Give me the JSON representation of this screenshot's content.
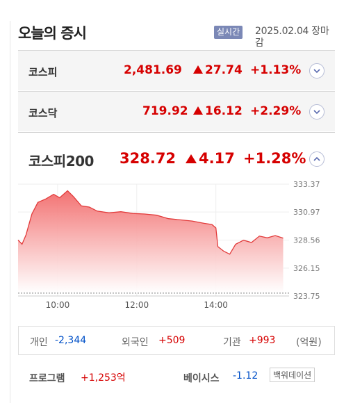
{
  "header": {
    "title": "오늘의 증시",
    "realtime_badge": "실시간",
    "date_status": "2025.02.04 장마감"
  },
  "indices": [
    {
      "name": "코스피",
      "value": "2,481.69",
      "change": "27.74",
      "percent": "+1.13%"
    },
    {
      "name": "코스닥",
      "value": "719.92",
      "change": "16.12",
      "percent": "+2.29%"
    }
  ],
  "kospi200": {
    "name": "코스피200",
    "value": "328.72",
    "change": "4.17",
    "percent": "+1.28%"
  },
  "chart_data": {
    "type": "area",
    "y_ticks": [
      "333.37",
      "330.97",
      "328.56",
      "326.15",
      "323.75"
    ],
    "x_ticks": [
      "10:00",
      "12:00",
      "14:00"
    ],
    "ylim": [
      323.75,
      333.37
    ],
    "baseline": 324.0,
    "series": [
      {
        "values": [
          [
            9.0,
            328.56
          ],
          [
            9.1,
            328.2
          ],
          [
            9.2,
            329.0
          ],
          [
            9.35,
            330.8
          ],
          [
            9.5,
            331.8
          ],
          [
            9.7,
            332.1
          ],
          [
            9.9,
            332.5
          ],
          [
            10.05,
            332.2
          ],
          [
            10.25,
            332.8
          ],
          [
            10.4,
            332.3
          ],
          [
            10.6,
            331.5
          ],
          [
            10.8,
            331.4
          ],
          [
            11.0,
            331.05
          ],
          [
            11.3,
            330.9
          ],
          [
            11.6,
            331.0
          ],
          [
            11.9,
            330.85
          ],
          [
            12.2,
            330.8
          ],
          [
            12.5,
            330.7
          ],
          [
            12.8,
            330.4
          ],
          [
            13.1,
            330.3
          ],
          [
            13.4,
            330.2
          ],
          [
            13.7,
            330.0
          ],
          [
            13.9,
            329.9
          ],
          [
            14.0,
            329.6
          ],
          [
            14.05,
            328.0
          ],
          [
            14.2,
            327.6
          ],
          [
            14.35,
            327.35
          ],
          [
            14.5,
            328.2
          ],
          [
            14.7,
            328.55
          ],
          [
            14.9,
            328.35
          ],
          [
            15.1,
            328.9
          ],
          [
            15.3,
            328.75
          ],
          [
            15.5,
            328.95
          ],
          [
            15.7,
            328.72
          ]
        ]
      }
    ]
  },
  "investors": [
    {
      "label": "개인",
      "value": "-2,344"
    },
    {
      "label": "외국인",
      "value": "+509"
    },
    {
      "label": "기관",
      "value": "+993"
    }
  ],
  "unit": "(억원)",
  "program": {
    "label": "프로그램",
    "value": "+1,253억"
  },
  "basis": {
    "label": "베이시스",
    "value": "-1.12",
    "button": "백워데이션"
  },
  "colors": {
    "up": "#d60000",
    "down": "#0050c8",
    "badge": "#7b88b6"
  }
}
